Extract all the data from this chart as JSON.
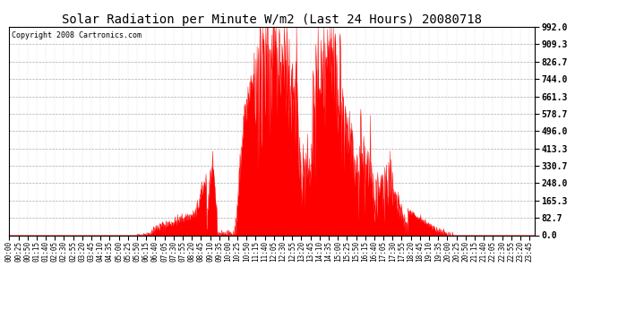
{
  "title": "Solar Radiation per Minute W/m2 (Last 24 Hours) 20080718",
  "copyright_text": "Copyright 2008 Cartronics.com",
  "yticks": [
    0.0,
    82.7,
    165.3,
    248.0,
    330.7,
    413.3,
    496.0,
    578.7,
    661.3,
    744.0,
    826.7,
    909.3,
    992.0
  ],
  "ymax": 992.0,
  "ymin": 0.0,
  "fill_color": "#FF0000",
  "line_color": "#FF0000",
  "dashed_line_color": "#FF0000",
  "grid_color": "#888888",
  "background_color": "#FFFFFF",
  "border_color": "#000000",
  "title_fontsize": 10,
  "copyright_fontsize": 6,
  "tick_label_fontsize": 5.5,
  "ytick_fontsize": 7
}
